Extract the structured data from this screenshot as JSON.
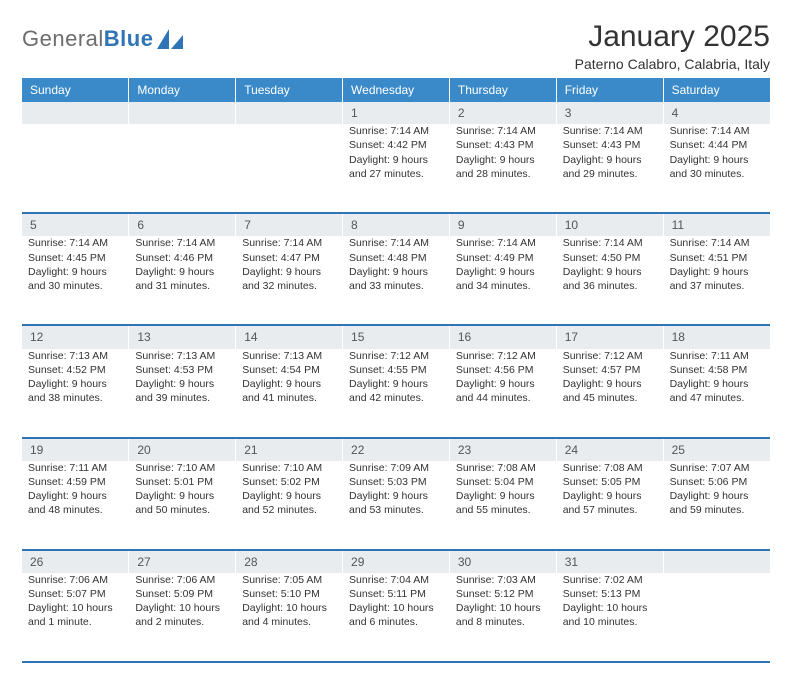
{
  "brand": {
    "general": "General",
    "blue": "Blue"
  },
  "title": "January 2025",
  "subtitle": "Paterno Calabro, Calabria, Italy",
  "colors": {
    "header_bg": "#3a8ac9",
    "daynum_bg": "#e8ecef",
    "divider": "#2f75b5",
    "text": "#333333",
    "logo_grey": "#6d6d6d",
    "logo_blue": "#2f75b5"
  },
  "weekdays": [
    "Sunday",
    "Monday",
    "Tuesday",
    "Wednesday",
    "Thursday",
    "Friday",
    "Saturday"
  ],
  "weeks": [
    {
      "days": [
        {
          "n": "",
          "sunrise": "",
          "sunset": "",
          "daylight": ""
        },
        {
          "n": "",
          "sunrise": "",
          "sunset": "",
          "daylight": ""
        },
        {
          "n": "",
          "sunrise": "",
          "sunset": "",
          "daylight": ""
        },
        {
          "n": "1",
          "sunrise": "Sunrise: 7:14 AM",
          "sunset": "Sunset: 4:42 PM",
          "daylight": "Daylight: 9 hours and 27 minutes."
        },
        {
          "n": "2",
          "sunrise": "Sunrise: 7:14 AM",
          "sunset": "Sunset: 4:43 PM",
          "daylight": "Daylight: 9 hours and 28 minutes."
        },
        {
          "n": "3",
          "sunrise": "Sunrise: 7:14 AM",
          "sunset": "Sunset: 4:43 PM",
          "daylight": "Daylight: 9 hours and 29 minutes."
        },
        {
          "n": "4",
          "sunrise": "Sunrise: 7:14 AM",
          "sunset": "Sunset: 4:44 PM",
          "daylight": "Daylight: 9 hours and 30 minutes."
        }
      ]
    },
    {
      "days": [
        {
          "n": "5",
          "sunrise": "Sunrise: 7:14 AM",
          "sunset": "Sunset: 4:45 PM",
          "daylight": "Daylight: 9 hours and 30 minutes."
        },
        {
          "n": "6",
          "sunrise": "Sunrise: 7:14 AM",
          "sunset": "Sunset: 4:46 PM",
          "daylight": "Daylight: 9 hours and 31 minutes."
        },
        {
          "n": "7",
          "sunrise": "Sunrise: 7:14 AM",
          "sunset": "Sunset: 4:47 PM",
          "daylight": "Daylight: 9 hours and 32 minutes."
        },
        {
          "n": "8",
          "sunrise": "Sunrise: 7:14 AM",
          "sunset": "Sunset: 4:48 PM",
          "daylight": "Daylight: 9 hours and 33 minutes."
        },
        {
          "n": "9",
          "sunrise": "Sunrise: 7:14 AM",
          "sunset": "Sunset: 4:49 PM",
          "daylight": "Daylight: 9 hours and 34 minutes."
        },
        {
          "n": "10",
          "sunrise": "Sunrise: 7:14 AM",
          "sunset": "Sunset: 4:50 PM",
          "daylight": "Daylight: 9 hours and 36 minutes."
        },
        {
          "n": "11",
          "sunrise": "Sunrise: 7:14 AM",
          "sunset": "Sunset: 4:51 PM",
          "daylight": "Daylight: 9 hours and 37 minutes."
        }
      ]
    },
    {
      "days": [
        {
          "n": "12",
          "sunrise": "Sunrise: 7:13 AM",
          "sunset": "Sunset: 4:52 PM",
          "daylight": "Daylight: 9 hours and 38 minutes."
        },
        {
          "n": "13",
          "sunrise": "Sunrise: 7:13 AM",
          "sunset": "Sunset: 4:53 PM",
          "daylight": "Daylight: 9 hours and 39 minutes."
        },
        {
          "n": "14",
          "sunrise": "Sunrise: 7:13 AM",
          "sunset": "Sunset: 4:54 PM",
          "daylight": "Daylight: 9 hours and 41 minutes."
        },
        {
          "n": "15",
          "sunrise": "Sunrise: 7:12 AM",
          "sunset": "Sunset: 4:55 PM",
          "daylight": "Daylight: 9 hours and 42 minutes."
        },
        {
          "n": "16",
          "sunrise": "Sunrise: 7:12 AM",
          "sunset": "Sunset: 4:56 PM",
          "daylight": "Daylight: 9 hours and 44 minutes."
        },
        {
          "n": "17",
          "sunrise": "Sunrise: 7:12 AM",
          "sunset": "Sunset: 4:57 PM",
          "daylight": "Daylight: 9 hours and 45 minutes."
        },
        {
          "n": "18",
          "sunrise": "Sunrise: 7:11 AM",
          "sunset": "Sunset: 4:58 PM",
          "daylight": "Daylight: 9 hours and 47 minutes."
        }
      ]
    },
    {
      "days": [
        {
          "n": "19",
          "sunrise": "Sunrise: 7:11 AM",
          "sunset": "Sunset: 4:59 PM",
          "daylight": "Daylight: 9 hours and 48 minutes."
        },
        {
          "n": "20",
          "sunrise": "Sunrise: 7:10 AM",
          "sunset": "Sunset: 5:01 PM",
          "daylight": "Daylight: 9 hours and 50 minutes."
        },
        {
          "n": "21",
          "sunrise": "Sunrise: 7:10 AM",
          "sunset": "Sunset: 5:02 PM",
          "daylight": "Daylight: 9 hours and 52 minutes."
        },
        {
          "n": "22",
          "sunrise": "Sunrise: 7:09 AM",
          "sunset": "Sunset: 5:03 PM",
          "daylight": "Daylight: 9 hours and 53 minutes."
        },
        {
          "n": "23",
          "sunrise": "Sunrise: 7:08 AM",
          "sunset": "Sunset: 5:04 PM",
          "daylight": "Daylight: 9 hours and 55 minutes."
        },
        {
          "n": "24",
          "sunrise": "Sunrise: 7:08 AM",
          "sunset": "Sunset: 5:05 PM",
          "daylight": "Daylight: 9 hours and 57 minutes."
        },
        {
          "n": "25",
          "sunrise": "Sunrise: 7:07 AM",
          "sunset": "Sunset: 5:06 PM",
          "daylight": "Daylight: 9 hours and 59 minutes."
        }
      ]
    },
    {
      "days": [
        {
          "n": "26",
          "sunrise": "Sunrise: 7:06 AM",
          "sunset": "Sunset: 5:07 PM",
          "daylight": "Daylight: 10 hours and 1 minute."
        },
        {
          "n": "27",
          "sunrise": "Sunrise: 7:06 AM",
          "sunset": "Sunset: 5:09 PM",
          "daylight": "Daylight: 10 hours and 2 minutes."
        },
        {
          "n": "28",
          "sunrise": "Sunrise: 7:05 AM",
          "sunset": "Sunset: 5:10 PM",
          "daylight": "Daylight: 10 hours and 4 minutes."
        },
        {
          "n": "29",
          "sunrise": "Sunrise: 7:04 AM",
          "sunset": "Sunset: 5:11 PM",
          "daylight": "Daylight: 10 hours and 6 minutes."
        },
        {
          "n": "30",
          "sunrise": "Sunrise: 7:03 AM",
          "sunset": "Sunset: 5:12 PM",
          "daylight": "Daylight: 10 hours and 8 minutes."
        },
        {
          "n": "31",
          "sunrise": "Sunrise: 7:02 AM",
          "sunset": "Sunset: 5:13 PM",
          "daylight": "Daylight: 10 hours and 10 minutes."
        },
        {
          "n": "",
          "sunrise": "",
          "sunset": "",
          "daylight": ""
        }
      ]
    }
  ]
}
